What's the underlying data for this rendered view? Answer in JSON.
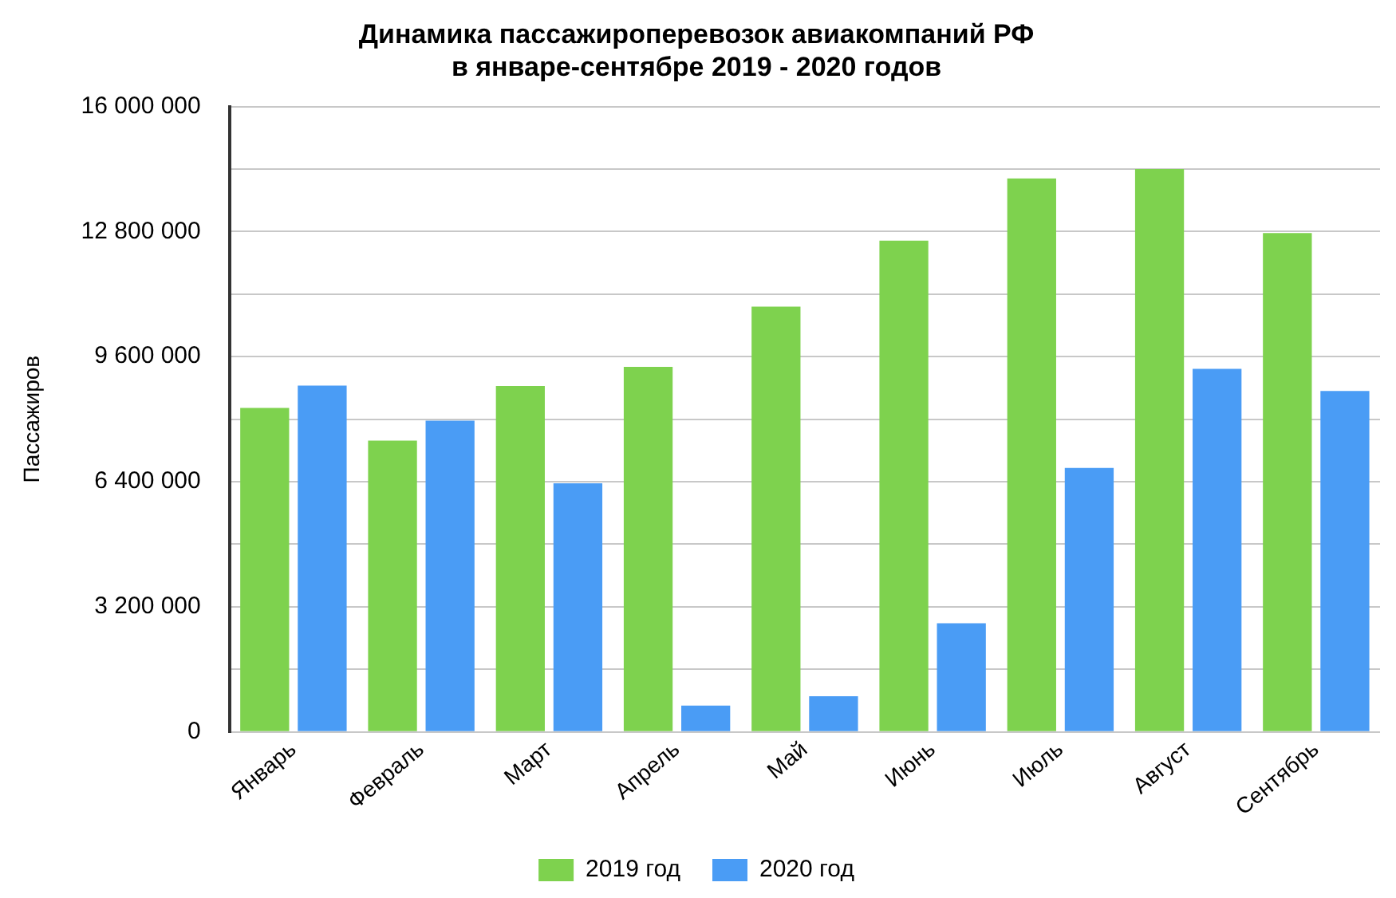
{
  "chart_data": {
    "type": "bar",
    "title": "Динамика пассажироперевозок авиакомпаний РФ\nв январе-сентябре 2019 - 2020 годов",
    "ylabel": "Пассажиров",
    "categories": [
      "Январь",
      "Февраль",
      "Март",
      "Апрель",
      "Май",
      "Июнь",
      "Июль",
      "Август",
      "Сентябрь"
    ],
    "series": [
      {
        "name": "2019 год",
        "color": "#7ed24e",
        "values": [
          8290000,
          7450000,
          8850000,
          9340000,
          10880000,
          12570000,
          14160000,
          14400000,
          12760000
        ]
      },
      {
        "name": "2020 год",
        "color": "#4a9cf5",
        "values": [
          8860000,
          7960000,
          6360000,
          670000,
          910000,
          2780000,
          6750000,
          9290000,
          8720000
        ]
      }
    ],
    "ylim": [
      0,
      16000000
    ],
    "yticks": [
      {
        "value": 0,
        "label": "0"
      },
      {
        "value": 1600000,
        "label": null
      },
      {
        "value": 3200000,
        "label": "3 200 000"
      },
      {
        "value": 4800000,
        "label": null
      },
      {
        "value": 6400000,
        "label": "6 400 000"
      },
      {
        "value": 8000000,
        "label": null
      },
      {
        "value": 9600000,
        "label": "9 600 000"
      },
      {
        "value": 11200000,
        "label": null
      },
      {
        "value": 12800000,
        "label": "12 800 000"
      },
      {
        "value": 14400000,
        "label": null
      },
      {
        "value": 16000000,
        "label": "16 000 000"
      }
    ],
    "grid": "y",
    "legend": "bottom"
  }
}
